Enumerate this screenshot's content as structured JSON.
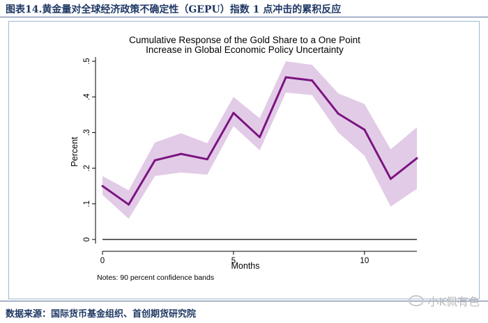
{
  "figure": {
    "caption": "图表14.黄金量对全球经济政策不确定性（GEPU）指数 1 点冲击的累积反应",
    "source": "数据来源：国际货币基金组织、首创期货研究院",
    "watermark": "小K佩有色"
  },
  "colors": {
    "line": "#7b1482",
    "band": "#e2cbe6",
    "zero_line": "#000000",
    "caption": "#1f3864"
  },
  "chart_data": {
    "type": "line",
    "title": "Cumulative Response of the Gold Share to a One Point",
    "subtitle": "Increase in Global Economic Policy Uncertainty",
    "xlabel": "Months",
    "ylabel": "Percent",
    "note": "Notes: 90 percent confidence bands",
    "xlim": [
      0,
      12
    ],
    "ylim": [
      0,
      0.5
    ],
    "x_ticks": [
      0,
      5,
      10
    ],
    "x_tick_labels": [
      "0",
      "5",
      "10"
    ],
    "y_ticks": [
      0,
      0.1,
      0.2,
      0.3,
      0.4,
      0.5
    ],
    "y_tick_labels": [
      "0",
      ".1",
      ".2",
      ".3",
      ".4",
      ".5"
    ],
    "grid": false,
    "x": [
      0,
      1,
      2,
      3,
      4,
      5,
      6,
      7,
      8,
      9,
      10,
      11,
      12
    ],
    "series": [
      {
        "values": [
          0.15,
          0.098,
          0.222,
          0.24,
          0.225,
          0.355,
          0.287,
          0.455,
          0.446,
          0.353,
          0.308,
          0.17,
          0.228
        ]
      }
    ],
    "band_upper": [
      0.178,
      0.138,
      0.272,
      0.298,
      0.27,
      0.4,
      0.34,
      0.5,
      0.49,
      0.41,
      0.38,
      0.253,
      0.315
    ],
    "band_lower": [
      0.125,
      0.058,
      0.178,
      0.188,
      0.182,
      0.318,
      0.25,
      0.412,
      0.405,
      0.3,
      0.235,
      0.092,
      0.142
    ],
    "zero_line": 0
  }
}
